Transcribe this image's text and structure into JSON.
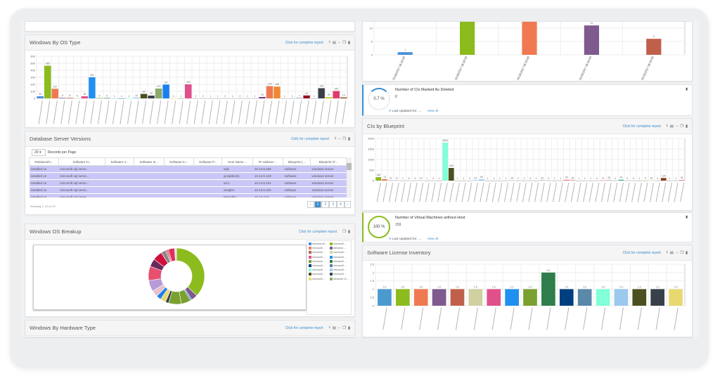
{
  "panels": {
    "os_type": {
      "title": "Windows By OS Type",
      "link": "Click for complete report"
    },
    "db_versions": {
      "title": "Database Server Versions",
      "link": "Click for complete report",
      "records_per_page": "20",
      "records_label": "Records per Page",
      "showing": "Showing 1- 20 of 70",
      "columns": [
        "Relationshi...",
        "Software N...",
        "Software V...",
        "Software In...",
        "Software In...",
        "Software P...",
        "Host Name ...",
        "IP Address ...",
        "Blueprint (...",
        "Blueprint (T..."
      ],
      "rows": [
        [
          "installed on",
          "microsoft sql serve...",
          "",
          "",
          "",
          "",
          "sql1",
          "10.14.6.205",
          "software",
          "windows server"
        ],
        [
          "installed on",
          "microsoft sql serve...",
          "",
          "",
          "",
          "",
          "qcsqldev01",
          "10.14.6.140",
          "software",
          "windows server"
        ],
        [
          "installed on",
          "microsoft sql serve...",
          "",
          "",
          "",
          "",
          "ssr1",
          "10.14.6.231",
          "software",
          "windows server"
        ],
        [
          "installed on",
          "microsoft sql serve...",
          "",
          "",
          "",
          "",
          "vesql01",
          "10.14.6.225",
          "software",
          "windows server"
        ],
        [
          "installed on",
          "microsoft sql serve...",
          "",
          "",
          "",
          "",
          "testsql02",
          "10.14.7.51",
          "software",
          "windows server"
        ]
      ],
      "pages": [
        "1",
        "2",
        "3",
        "4"
      ]
    },
    "os_breakup": {
      "title": "Windows OS Breakup",
      "link": "Click for complete report",
      "legend": [
        "windows te...",
        "microsoft ...",
        "microsoft ...",
        "windows ...",
        "microsoft ...",
        "microsoft ...",
        "microsoft ...",
        "microsoft ...",
        "microsoft ...",
        "microsoft ...",
        "microsoft ...",
        "microsoft ...",
        "microsoft ...",
        "microsoft ...",
        "microsoft ...",
        "microsoft ...",
        "microsoft ...",
        "windows 10..."
      ],
      "legend_colors": [
        "#4a90d9",
        "#8cbb1e",
        "#ef7a52",
        "#7e5a8e",
        "#c0604a",
        "#d6d6a0",
        "#e0508a",
        "#2090f0",
        "#7aa030",
        "#2e7d4a",
        "#003f7f",
        "#5a80a8",
        "#80ffd8",
        "#9cc8ee",
        "#4a5020",
        "#38404a",
        "#e8d870",
        "#8caa6a"
      ]
    },
    "hw_type": {
      "title": "Windows By Hardware Type",
      "link": "Click for complete report"
    },
    "deleted": {
      "title": "Number of CIs Marked As Deleted",
      "value": "8",
      "percent": "0.7 %",
      "updated": "Last Updated On:",
      "dots": "....",
      "view": "View All",
      "color": "#3b8ed0"
    },
    "blueprint": {
      "title": "CIs by Blueprint",
      "link": "Click for complete report"
    },
    "vm": {
      "title": "Number of Virtual Machines without Host",
      "value": "159",
      "percent": "100 %",
      "updated": "Last Updated On:",
      "dots": "....",
      "view": "View All",
      "color": "#8cbb1e"
    },
    "license": {
      "title": "Software License Inventory",
      "link": "Click for complete report"
    }
  },
  "chart_data": [
    {
      "type": "bar",
      "ylim": [
        0,
        600
      ],
      "yticks": [
        0,
        100,
        200,
        300,
        400,
        500,
        600
      ],
      "values": [
        30,
        465,
        137,
        8,
        8,
        5,
        30,
        301,
        5,
        5,
        1,
        1,
        2,
        12,
        64,
        40,
        140,
        197,
        1,
        1,
        200,
        2,
        2,
        1,
        1,
        2,
        1,
        2,
        1,
        1,
        20,
        175,
        168,
        1,
        1,
        7,
        42,
        1,
        145,
        20,
        105,
        14
      ],
      "colors": [
        "#4a90d9",
        "#8cbb1e",
        "#ef7a52",
        "#7e5a8e",
        "#c0604a",
        "#d6d6a0",
        "#e0508a",
        "#2090f0",
        "#7aa030",
        "#2e7d4a",
        "#9cc8ee",
        "#5a80a8",
        "#80ffd8",
        "#9cc8ee",
        "#4a5020",
        "#38404a",
        "#8caa6a",
        "#1a80f0",
        "#e8d870",
        "#aaa",
        "#e0508a",
        "#aaa",
        "#aaa",
        "#aaa",
        "#aaa",
        "#aaa",
        "#aaa",
        "#aaa",
        "#aaa",
        "#aaa",
        "#7e3a8e",
        "#ef7a52",
        "#ef8a32",
        "#aaa",
        "#aaa",
        "#8a9ad0",
        "#9a1020",
        "#aaa",
        "#38404a",
        "#c8d040",
        "#e03a6a",
        "#8a5020"
      ]
    },
    {
      "type": "bar",
      "ylim": [
        0,
        15
      ],
      "yticks": [
        0,
        5,
        10
      ],
      "categories": [
        "01/26/2017 06:30:00",
        "01/26/2017 06:30:00",
        "01/26/2017 06:30:00",
        "01/26/2017 06:30:00",
        "01/26/2017 06:30:00"
      ],
      "values": [
        1,
        15,
        15,
        11,
        6
      ],
      "colors": [
        "#4a90d9",
        "#8cbb1e",
        "#ef7a52",
        "#7e5a8e",
        "#c0604a"
      ]
    },
    {
      "type": "bar",
      "ylim": [
        0,
        2000
      ],
      "yticks": [
        0,
        500,
        1000,
        1500,
        2000
      ],
      "values": [
        166,
        70,
        13,
        11,
        1,
        5,
        3,
        14,
        1,
        3,
        1,
        1800,
        600,
        1,
        1,
        3,
        24,
        60,
        1,
        1,
        1,
        1,
        15,
        4,
        1,
        3,
        1,
        22,
        5,
        1,
        1,
        43,
        25,
        1,
        1,
        1,
        4,
        11,
        26,
        4,
        42,
        3,
        5,
        1,
        3,
        22,
        3,
        124,
        1,
        1,
        32
      ],
      "colors": [
        "#8cbb1e",
        "#ef7a52",
        "#aaa",
        "#aaa",
        "#aaa",
        "#aaa",
        "#aaa",
        "#aaa",
        "#aaa",
        "#aaa",
        "#aaa",
        "#80ffd8",
        "#4a5020",
        "#aaa",
        "#aaa",
        "#aaa",
        "#9cc8ee",
        "#9cc8ee",
        "#aaa",
        "#aaa",
        "#aaa",
        "#aaa",
        "#aaa",
        "#aaa",
        "#aaa",
        "#aaa",
        "#aaa",
        "#aaa",
        "#aaa",
        "#aaa",
        "#aaa",
        "#f08080",
        "#f08080",
        "#aaa",
        "#aaa",
        "#aaa",
        "#aaa",
        "#f08080",
        "#aaa",
        "#aaa",
        "#3aaa8a",
        "#aaa",
        "#aaa",
        "#aaa",
        "#aaa",
        "#d6e0a0",
        "#aaa",
        "#8a3a1a",
        "#aaa",
        "#aaa",
        "#f08080"
      ]
    },
    {
      "type": "bar",
      "ylim": [
        0,
        2.5
      ],
      "yticks": [
        0,
        0.5,
        1.0,
        1.5,
        2.0,
        2.5
      ],
      "values": [
        1,
        1,
        1,
        1,
        1,
        1,
        1,
        1,
        1,
        2,
        1,
        1,
        1,
        1,
        1,
        1,
        1
      ],
      "colors": [
        "#4a9ad0",
        "#8cbb1e",
        "#ef7a52",
        "#7e5a8e",
        "#c0604a",
        "#d0d0a0",
        "#e0508a",
        "#2090f0",
        "#7aa030",
        "#2e7d4a",
        "#003f7f",
        "#5a88a8",
        "#80ffd8",
        "#9cc8ee",
        "#4a5020",
        "#38404a",
        "#e8d870"
      ]
    },
    {
      "type": "pie",
      "values": [
        405,
        40,
        10,
        60,
        80,
        20,
        35,
        30,
        40,
        70,
        90,
        50,
        60,
        30,
        8,
        10,
        40,
        12
      ],
      "colors": [
        "#8cbb1e",
        "#7e5a8e",
        "#4a90d9",
        "#7aa030",
        "#7aa030",
        "#38404a",
        "#e8d870",
        "#1a80f0",
        "#e8c0c8",
        "#b89ad8",
        "#e85070",
        "#6a2a5a",
        "#d0103a",
        "#888",
        "#e0305a",
        "#c8505a",
        "#e0305a",
        "#ddd"
      ]
    }
  ]
}
